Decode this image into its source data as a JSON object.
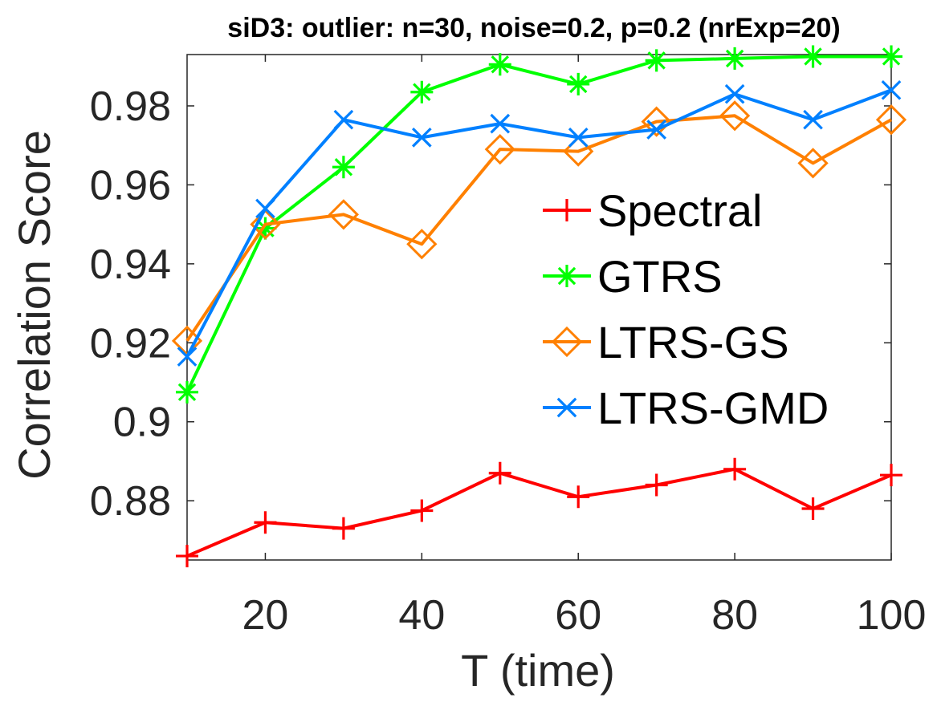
{
  "chart_data": {
    "type": "line",
    "title": "siD3: outlier: n=30, noise=0.2, p=0.2 (nrExp=20)",
    "xlabel": "T (time)",
    "ylabel": "Correlation Score",
    "x": [
      10,
      20,
      30,
      40,
      50,
      60,
      70,
      80,
      90,
      100
    ],
    "xlim": [
      10,
      100
    ],
    "ylim": [
      0.865,
      0.993
    ],
    "xticks": [
      20,
      40,
      60,
      80,
      100
    ],
    "xtick_labels": [
      "20",
      "40",
      "60",
      "80",
      "100"
    ],
    "yticks": [
      0.88,
      0.9,
      0.92,
      0.94,
      0.96,
      0.98
    ],
    "ytick_labels": [
      "0.88",
      "0.9",
      "0.92",
      "0.94",
      "0.96",
      "0.98"
    ],
    "grid": false,
    "legend_position": "center-right",
    "series": [
      {
        "name": "Spectral",
        "color": "#ff0000",
        "marker": "plus",
        "values": [
          0.866,
          0.8745,
          0.873,
          0.8775,
          0.887,
          0.881,
          0.884,
          0.888,
          0.878,
          0.8865
        ]
      },
      {
        "name": "GTRS",
        "color": "#00ff00",
        "marker": "asterisk",
        "values": [
          0.9075,
          0.949,
          0.9645,
          0.9835,
          0.9905,
          0.9855,
          0.9915,
          0.992,
          0.9925,
          0.9925
        ]
      },
      {
        "name": "LTRS-GS",
        "color": "#ff8000",
        "marker": "diamond",
        "values": [
          0.9205,
          0.95,
          0.9525,
          0.945,
          0.969,
          0.9685,
          0.976,
          0.9775,
          0.9655,
          0.9765
        ]
      },
      {
        "name": "LTRS-GMD",
        "color": "#0080ff",
        "marker": "x",
        "values": [
          0.9165,
          0.954,
          0.9765,
          0.972,
          0.9755,
          0.972,
          0.974,
          0.983,
          0.9765,
          0.984
        ]
      }
    ]
  }
}
